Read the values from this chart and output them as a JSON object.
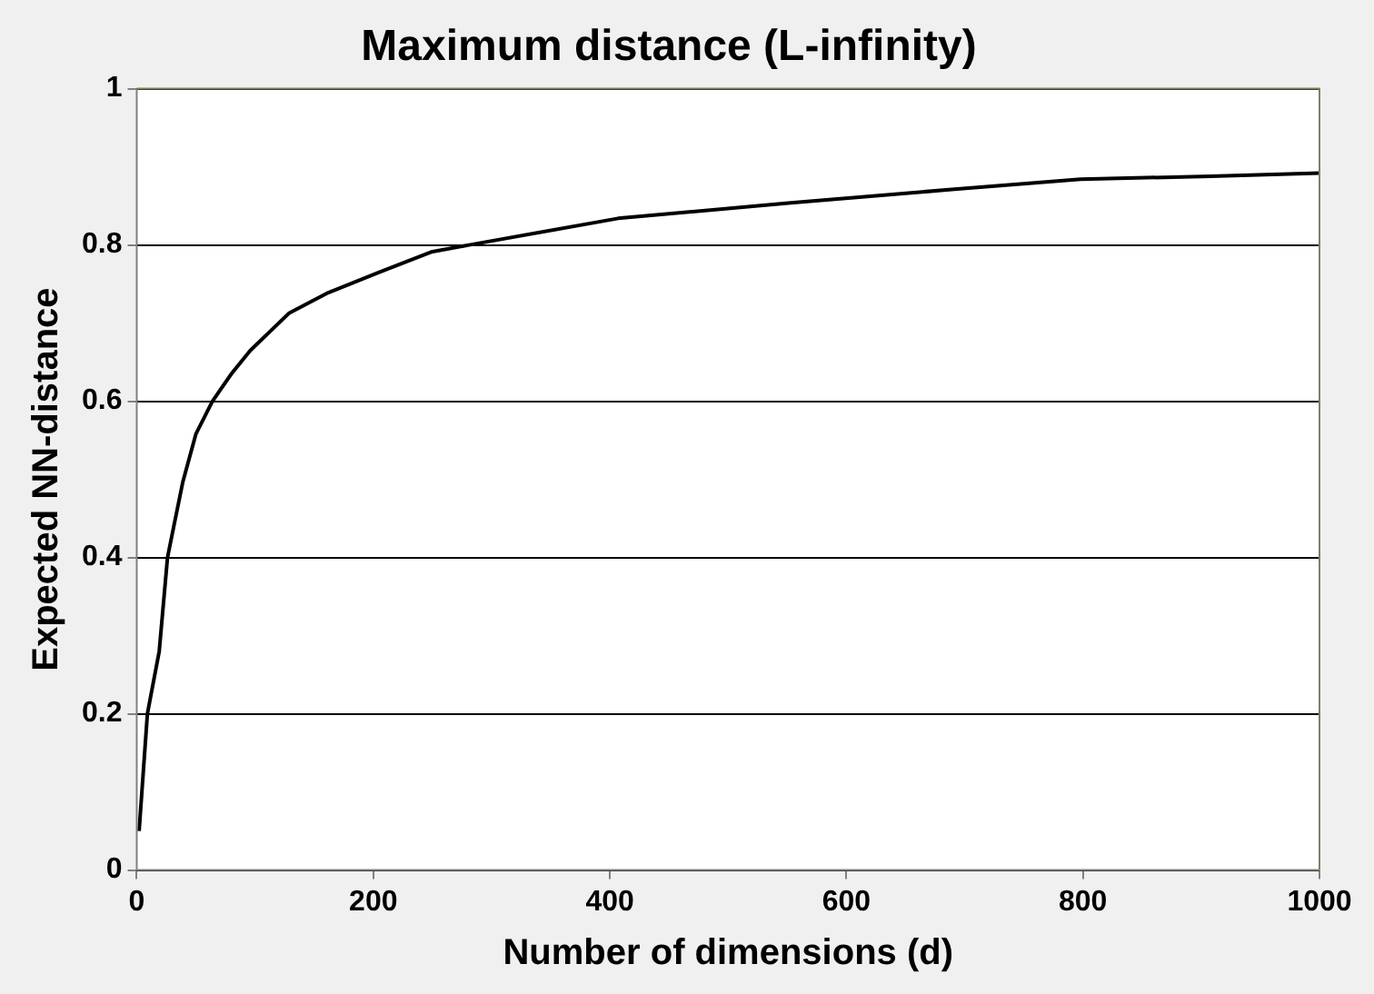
{
  "chart_data": {
    "type": "line",
    "title": "Maximum distance (L-infinity)",
    "xlabel": "Number of dimensions (d)",
    "ylabel": "Expected NN-distance",
    "series": [
      {
        "color": "#000000",
        "x": [
          2,
          9,
          19,
          26,
          32,
          39,
          50,
          64,
          80,
          96,
          129,
          162,
          205,
          249,
          281,
          407,
          553,
          689,
          798,
          908,
          1000
        ],
        "values": [
          0.05,
          0.2,
          0.28,
          0.4,
          0.445,
          0.497,
          0.558,
          0.6,
          0.635,
          0.665,
          0.713,
          0.739,
          0.765,
          0.791,
          0.8,
          0.834,
          0.854,
          0.871,
          0.884,
          0.888,
          0.892
        ]
      }
    ],
    "xlim": [
      0,
      1000
    ],
    "xticks": [
      0,
      200,
      400,
      600,
      800,
      1000
    ],
    "ylim": [
      0,
      1
    ],
    "yticks": [
      0,
      0.2,
      0.4,
      0.6,
      0.8,
      1
    ],
    "grid": "y",
    "legend": false,
    "marker": "none",
    "line_style": "solid"
  }
}
